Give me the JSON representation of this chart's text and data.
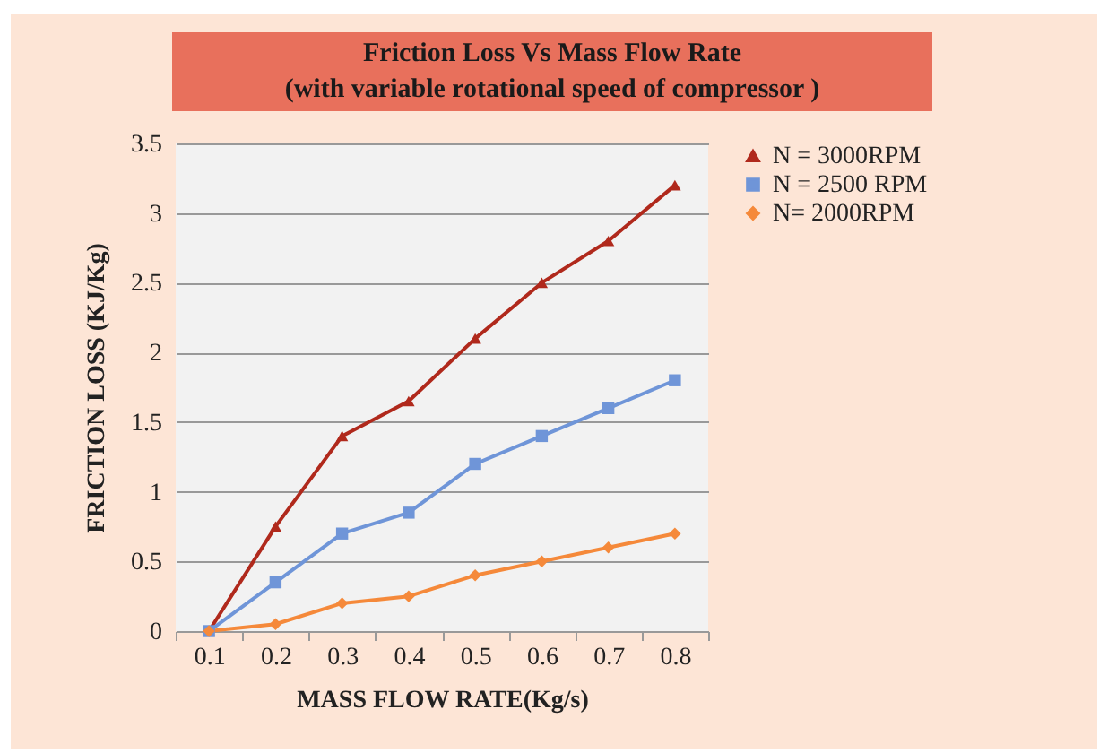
{
  "chart_data": {
    "type": "line",
    "title": "Friction Loss Vs Mass Flow Rate",
    "subtitle": "(with variable rotational speed of compressor )",
    "xlabel": "MASS FLOW RATE(Kg/s)",
    "ylabel": "FRICTION  LOSS (KJ/Kg)",
    "categories": [
      "0.1",
      "0.2",
      "0.3",
      "0.4",
      "0.5",
      "0.6",
      "0.7",
      "0.8"
    ],
    "series": [
      {
        "name": "N = 3000RPM",
        "color": "#b0291c",
        "marker": "triangle",
        "values": [
          0,
          0.75,
          1.4,
          1.65,
          2.1,
          2.5,
          2.8,
          3.2
        ]
      },
      {
        "name": "N = 2500 RPM",
        "color": "#6f95d8",
        "marker": "square",
        "values": [
          0,
          0.35,
          0.7,
          0.85,
          1.2,
          1.4,
          1.6,
          1.8
        ]
      },
      {
        "name": "N= 2000RPM",
        "color": "#f5893a",
        "marker": "diamond",
        "values": [
          0,
          0.05,
          0.2,
          0.25,
          0.4,
          0.5,
          0.6,
          0.7
        ]
      }
    ],
    "ylim": [
      0,
      3.5
    ],
    "yticks": [
      0,
      0.5,
      1,
      1.5,
      2,
      2.5,
      3,
      3.5
    ],
    "grid": "y",
    "legend": "right"
  }
}
